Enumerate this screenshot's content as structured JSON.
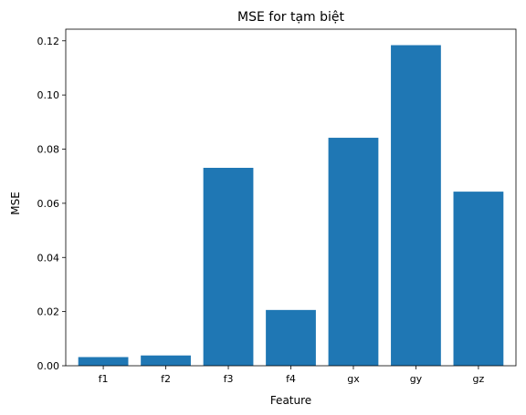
{
  "chart_data": {
    "type": "bar",
    "title": "MSE for tạm biệt",
    "xlabel": "Feature",
    "ylabel": "MSE",
    "categories": [
      "f1",
      "f2",
      "f3",
      "f4",
      "gx",
      "gy",
      "gz"
    ],
    "values": [
      0.0032,
      0.0038,
      0.0731,
      0.0206,
      0.0842,
      0.1184,
      0.0643
    ],
    "ylim": [
      0,
      0.1243
    ],
    "yticks": [
      0.0,
      0.02,
      0.04,
      0.06,
      0.08,
      0.1,
      0.12
    ],
    "ytick_labels": [
      "0.00",
      "0.02",
      "0.04",
      "0.06",
      "0.08",
      "0.10",
      "0.12"
    ],
    "bar_color": "#1f77b4",
    "grid": false,
    "legend": "none"
  }
}
